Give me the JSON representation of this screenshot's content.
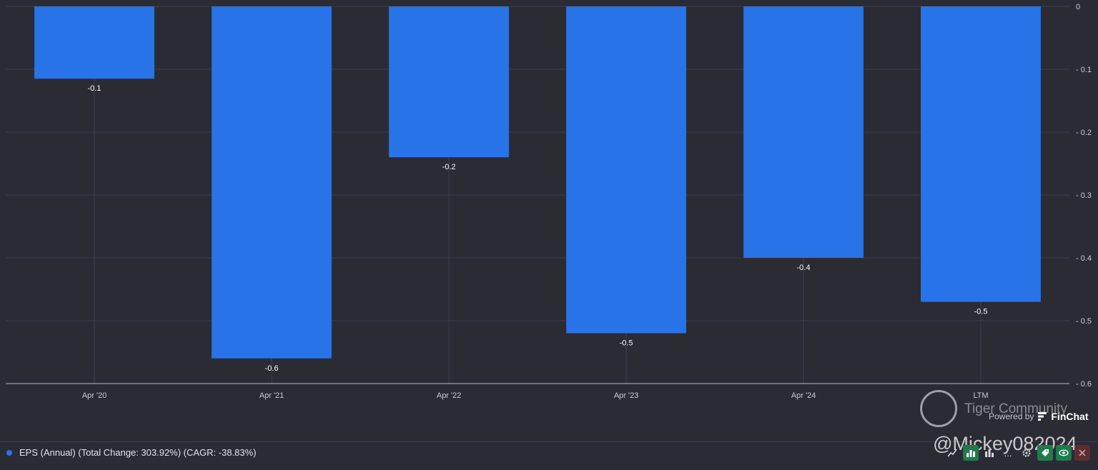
{
  "chart_data": {
    "type": "bar",
    "categories": [
      "Apr '20",
      "Apr '21",
      "Apr '22",
      "Apr '23",
      "Apr '24",
      "LTM"
    ],
    "values": [
      -0.115,
      -0.56,
      -0.24,
      -0.52,
      -0.4,
      -0.47
    ],
    "data_labels": [
      "-0.1",
      "-0.6",
      "-0.2",
      "-0.5",
      "-0.4",
      "-0.5"
    ],
    "y_ticks": [
      0,
      -0.1,
      -0.2,
      -0.3,
      -0.4,
      -0.5,
      -0.6
    ],
    "y_tick_labels": [
      "0",
      "- 0.1",
      "- 0.2",
      "- 0.3",
      "- 0.4",
      "- 0.5",
      "- 0.6"
    ],
    "ylim": [
      -0.6,
      0
    ],
    "grid": true,
    "y_axis_side": "right",
    "bar_color": "#2873e8"
  },
  "legend": {
    "label": "EPS (Annual) (Total Change: 303.92%) (CAGR: -38.83%)",
    "color": "#2873e8"
  },
  "watermark": {
    "text": "Tiger Community",
    "handle": "@Mickey082024"
  },
  "branding": {
    "powered_by": "Powered by",
    "name": "FinChat"
  },
  "toolbar": {
    "icons": [
      "line-chart-icon",
      "bar-chart-icon",
      "bar-chart-icon",
      "more-icon",
      "gear-icon",
      "tag-icon",
      "eye-icon",
      "close-icon"
    ],
    "more_label": "..."
  }
}
